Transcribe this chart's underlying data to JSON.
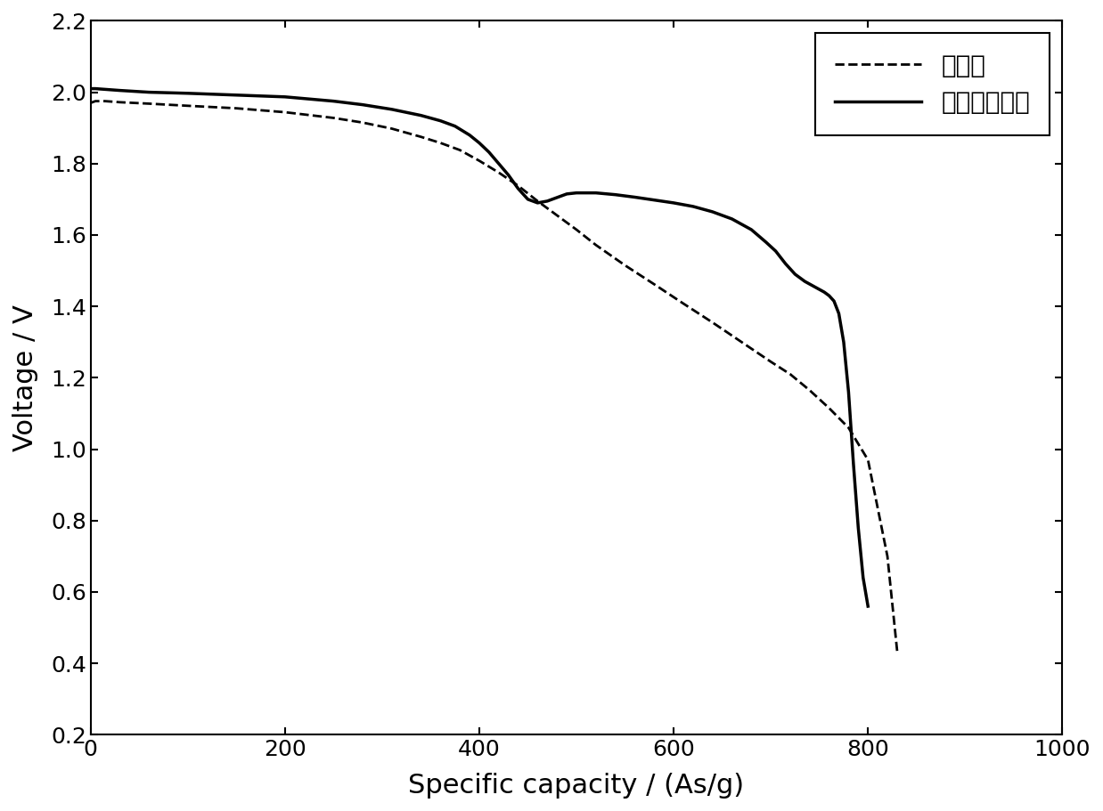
{
  "xlabel": "Specific capacity / (As/g)",
  "ylabel": "Voltage / V",
  "xlim": [
    0,
    1000
  ],
  "ylim": [
    0.2,
    2.2
  ],
  "xticks": [
    0,
    200,
    400,
    600,
    800,
    1000
  ],
  "yticks": [
    0.2,
    0.4,
    0.6,
    0.8,
    1.0,
    1.2,
    1.4,
    1.6,
    1.8,
    2.0,
    2.2
  ],
  "legend_labels": [
    "对比例",
    "本发明实施例"
  ],
  "line_color": "#000000",
  "background_color": "#ffffff",
  "dashed_x": [
    0,
    5,
    15,
    30,
    60,
    100,
    150,
    200,
    250,
    280,
    310,
    340,
    360,
    380,
    400,
    420,
    440,
    460,
    480,
    500,
    520,
    550,
    580,
    610,
    640,
    670,
    700,
    720,
    740,
    760,
    780,
    800,
    820,
    830
  ],
  "dashed_y": [
    1.97,
    1.975,
    1.975,
    1.972,
    1.968,
    1.962,
    1.955,
    1.944,
    1.928,
    1.915,
    1.898,
    1.875,
    1.858,
    1.838,
    1.808,
    1.775,
    1.738,
    1.695,
    1.655,
    1.615,
    1.572,
    1.515,
    1.462,
    1.408,
    1.355,
    1.3,
    1.245,
    1.21,
    1.165,
    1.115,
    1.06,
    0.97,
    0.7,
    0.435
  ],
  "solid_x": [
    0,
    5,
    15,
    30,
    60,
    100,
    150,
    200,
    250,
    280,
    310,
    340,
    360,
    375,
    390,
    400,
    410,
    420,
    430,
    440,
    450,
    460,
    470,
    480,
    490,
    500,
    520,
    540,
    560,
    580,
    600,
    620,
    640,
    660,
    680,
    695,
    705,
    715,
    725,
    735,
    745,
    755,
    760,
    765,
    770,
    775,
    780,
    785,
    790,
    795,
    800
  ],
  "solid_y": [
    2.01,
    2.01,
    2.008,
    2.005,
    2.0,
    1.997,
    1.992,
    1.987,
    1.975,
    1.965,
    1.952,
    1.935,
    1.92,
    1.905,
    1.88,
    1.858,
    1.832,
    1.8,
    1.768,
    1.73,
    1.7,
    1.69,
    1.695,
    1.705,
    1.715,
    1.718,
    1.718,
    1.713,
    1.706,
    1.698,
    1.69,
    1.68,
    1.665,
    1.645,
    1.615,
    1.58,
    1.555,
    1.52,
    1.49,
    1.47,
    1.455,
    1.44,
    1.43,
    1.415,
    1.38,
    1.3,
    1.16,
    0.96,
    0.78,
    0.64,
    0.56
  ]
}
